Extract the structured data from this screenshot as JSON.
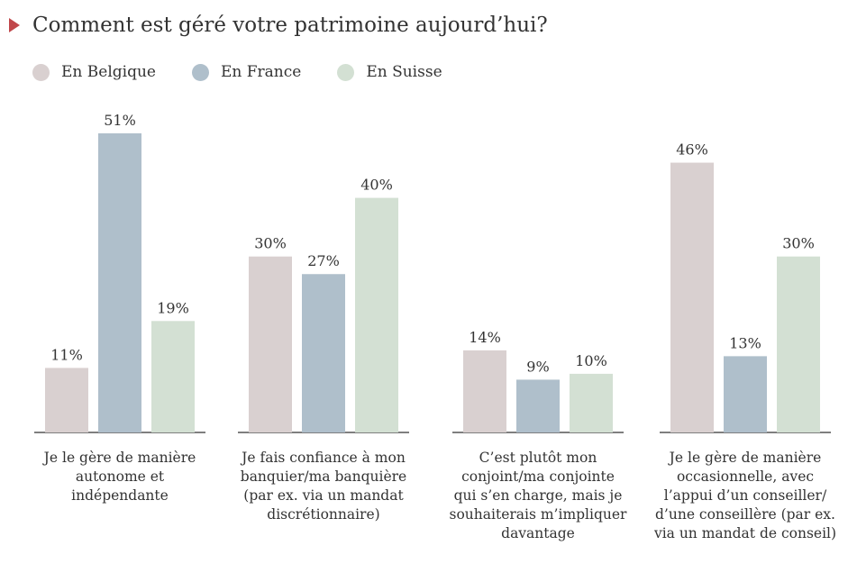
{
  "chart_data": {
    "type": "bar",
    "title": "Comment est géré votre patrimoine aujourd’hui?",
    "categories": [
      "Je le gère de manière autonome et indépendante",
      "Je fais confiance à mon banquier/ma banquière (par ex. via un mandat discrétionnaire)",
      "C’est plutôt mon conjoint/ma conjointe qui s’en charge, mais je souhaiterais m’impliquer davantage",
      "Je le gère de manière occasionnelle, avec l’appui d’un conseiller/ d’une conseillère (par ex. via un mandat de conseil)"
    ],
    "category_lines": [
      [
        "Je le gère de manière",
        "autonome et",
        "indépendante"
      ],
      [
        "Je fais confiance à mon",
        "banquier/ma banquière",
        "(par ex. via un mandat",
        "discrétionnaire)"
      ],
      [
        "C’est plutôt mon",
        "conjoint/ma conjointe",
        "qui s’en charge, mais je",
        "souhaiterais m’impliquer",
        "davantage"
      ],
      [
        "Je le gère de manière",
        "occasionnelle, avec",
        "l’appui d’un conseiller/",
        "d’une conseillère (par ex.",
        "via un mandat de conseil)"
      ]
    ],
    "series": [
      {
        "name": "En Belgique",
        "color": "#d9d0d0",
        "values": [
          11,
          30,
          14,
          46
        ],
        "labels": [
          "11%",
          "30%",
          "14%",
          "46%"
        ]
      },
      {
        "name": "En France",
        "color": "#afbfcb",
        "values": [
          51,
          27,
          9,
          13
        ],
        "labels": [
          "51%",
          "27%",
          "9%",
          "13%"
        ]
      },
      {
        "name": "En Suisse",
        "color": "#d3e0d3",
        "values": [
          19,
          40,
          10,
          30
        ],
        "labels": [
          "19%",
          "40%",
          "10%",
          "30%"
        ]
      }
    ],
    "ylim": [
      0,
      51
    ],
    "grid": false,
    "legend_position": "top-left"
  }
}
